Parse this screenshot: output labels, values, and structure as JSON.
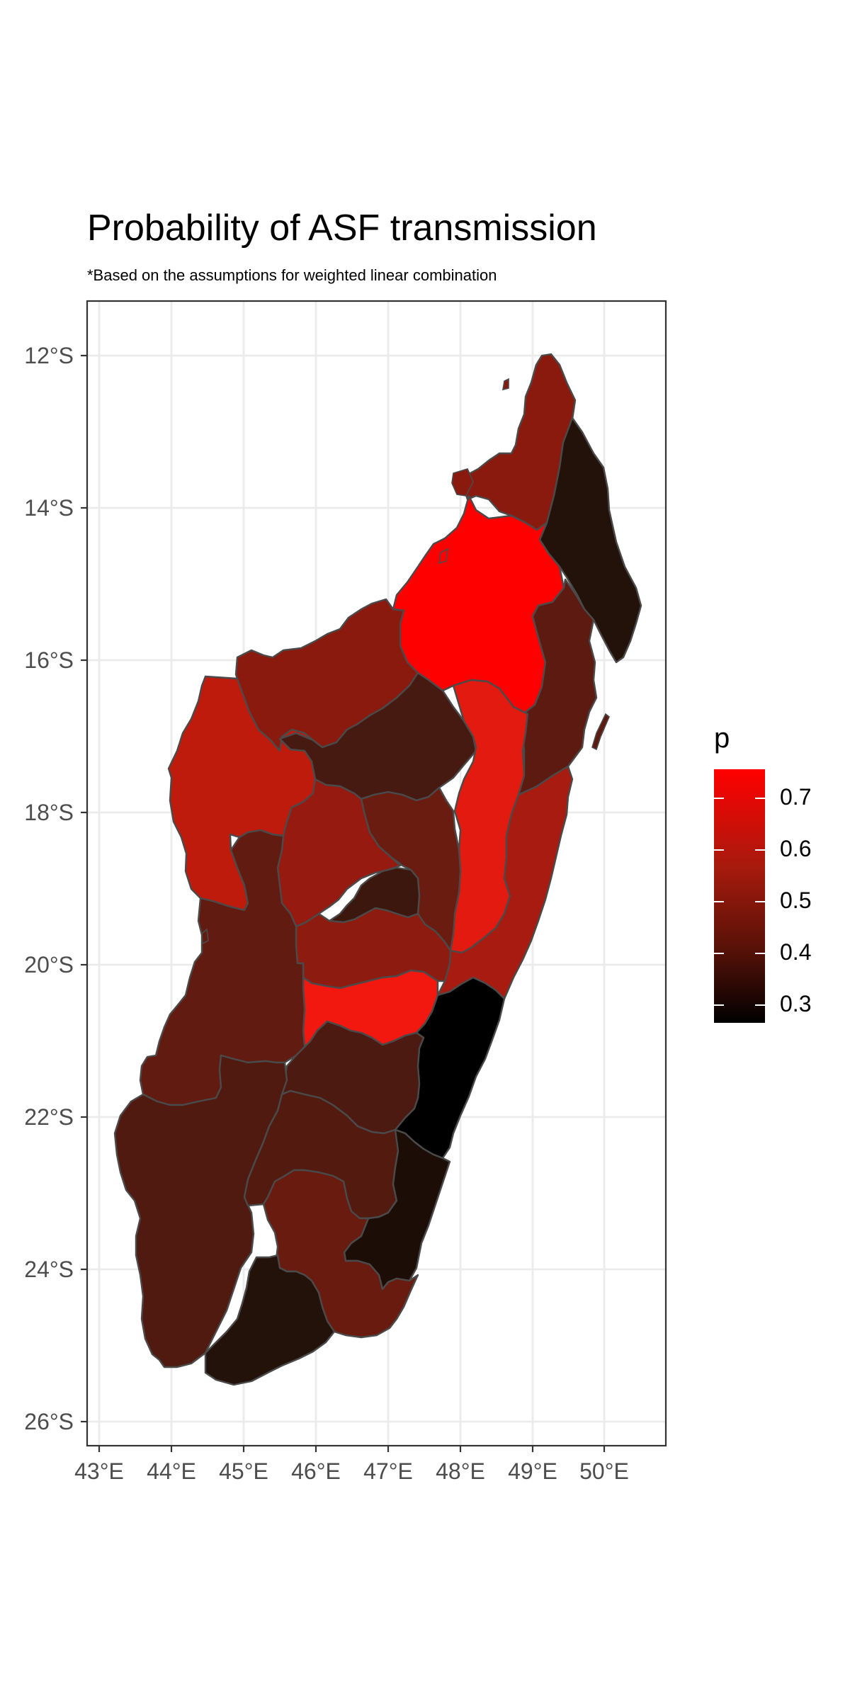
{
  "title": "Probability of ASF transmission",
  "subtitle": "*Based on the assumptions for weighted linear combination",
  "x_axis": {
    "ticks": [
      "43°E",
      "44°E",
      "45°E",
      "46°E",
      "47°E",
      "48°E",
      "49°E",
      "50°E"
    ]
  },
  "y_axis": {
    "ticks": [
      "12°S",
      "14°S",
      "16°S",
      "18°S",
      "20°S",
      "22°S",
      "24°S",
      "26°S"
    ]
  },
  "legend": {
    "title": "p",
    "labels": [
      "0.7",
      "0.6",
      "0.5",
      "0.4",
      "0.3"
    ],
    "colors": {
      "low": "#000000",
      "mid": "#5a1208",
      "high": "#ff0000"
    }
  },
  "colors": {
    "grid": "#ebebeb",
    "panel_border": "#333333",
    "region_border": "#4a4a4a"
  },
  "regions": [
    {
      "id": "far-north",
      "p": 0.55,
      "color": "#8b1a0e"
    },
    {
      "id": "northeast",
      "p": 0.3,
      "color": "#231209"
    },
    {
      "id": "north-central",
      "p": 0.72,
      "color": "#ff0000"
    },
    {
      "id": "northwest",
      "p": 0.55,
      "color": "#8a1a0e"
    },
    {
      "id": "northeast-coast",
      "p": 0.47,
      "color": "#5c1a10"
    },
    {
      "id": "west-central-north",
      "p": 0.62,
      "color": "#be1b0d"
    },
    {
      "id": "central-north",
      "p": 0.42,
      "color": "#461a10"
    },
    {
      "id": "east-central-strip",
      "p": 0.69,
      "color": "#e21a0f"
    },
    {
      "id": "east-coast",
      "p": 0.6,
      "color": "#a81b10"
    },
    {
      "id": "central-west-highland",
      "p": 0.58,
      "color": "#961a10"
    },
    {
      "id": "central-highland",
      "p": 0.5,
      "color": "#6a1c10"
    },
    {
      "id": "central-small",
      "p": 0.4,
      "color": "#3c170d"
    },
    {
      "id": "central-band",
      "p": 0.56,
      "color": "#8e1b10"
    },
    {
      "id": "central-south",
      "p": 0.71,
      "color": "#f2180f"
    },
    {
      "id": "west",
      "p": 0.5,
      "color": "#611b10"
    },
    {
      "id": "east-coast-south",
      "p": 0.26,
      "color": "#000000"
    },
    {
      "id": "south-central-east",
      "p": 0.44,
      "color": "#4c1a10"
    },
    {
      "id": "southwest",
      "p": 0.45,
      "color": "#501a10"
    },
    {
      "id": "south-central",
      "p": 0.46,
      "color": "#531b10"
    },
    {
      "id": "southeast-coast",
      "p": 0.31,
      "color": "#1c0d07"
    },
    {
      "id": "south-inland",
      "p": 0.5,
      "color": "#6a1b10"
    },
    {
      "id": "far-south",
      "p": 0.3,
      "color": "#231209"
    }
  ]
}
